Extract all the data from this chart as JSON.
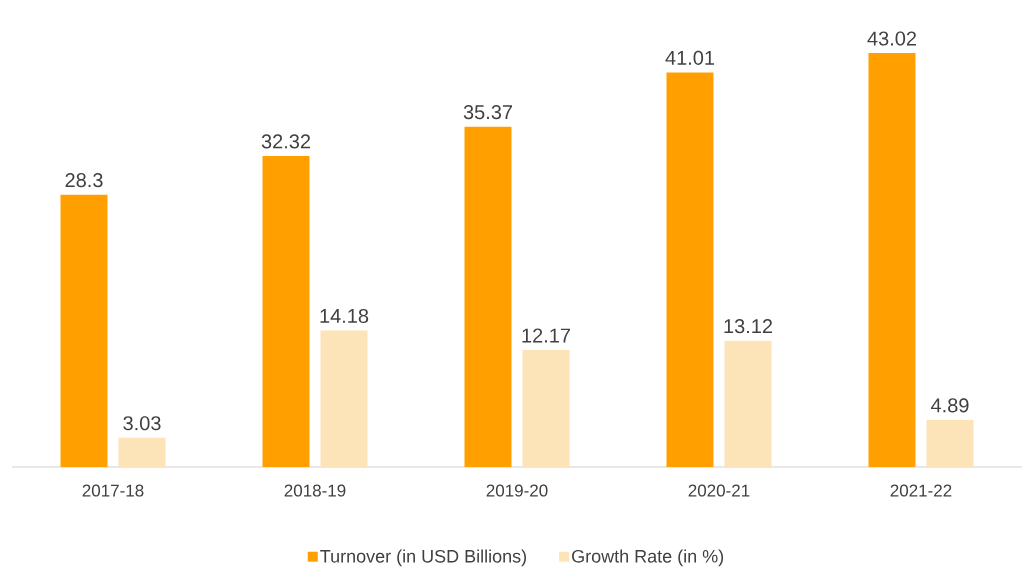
{
  "chart_data": {
    "type": "bar",
    "categories": [
      "2017-18",
      "2018-19",
      "2019-20",
      "2020-21",
      "2021-22"
    ],
    "series": [
      {
        "name": "Turnover (in USD Billions)",
        "color": "#ffa000",
        "values": [
          28.3,
          32.32,
          35.37,
          41.01,
          43.02
        ]
      },
      {
        "name": "Growth Rate (in %)",
        "color": "#fde3b8",
        "values": [
          3.03,
          14.18,
          12.17,
          13.12,
          4.89
        ]
      }
    ],
    "data_labels": true,
    "legend": "bottom"
  }
}
